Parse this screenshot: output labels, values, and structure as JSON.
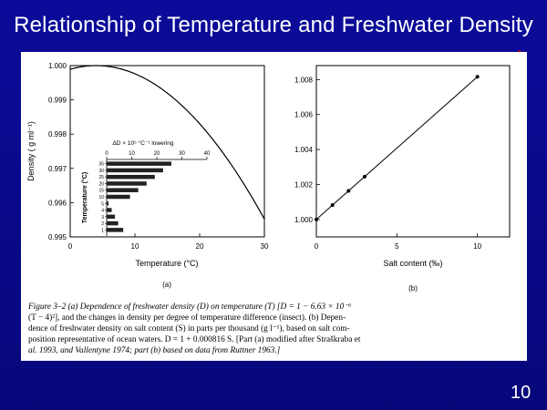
{
  "slide": {
    "title": "Relationship of Temperature and Freshwater Density",
    "page_number": "10",
    "star": "*",
    "colors": {
      "background": "#0a0a8c",
      "star": "#e00000",
      "panel": "#ffffff"
    }
  },
  "caption": {
    "lines": [
      "Figure 3–2   (a) Dependence of freshwater density (D) on temperature (T) [D = 1 − 6.63 × 10⁻⁶",
      "(T − 4)²], and the changes in density per degree of temperature difference (insect). (b) Depen-",
      "dence of freshwater density on salt content (S) in parts per thousand (g l⁻¹), based on salt com-",
      "position representative of ocean waters. D = 1 + 0.000816 S. [Part (a) modified after Straškraba et",
      "al. 1993, and Vallentyne 1974; part (b) based on data from Ruttner 1963.]"
    ]
  },
  "chart_data": [
    {
      "type": "line",
      "panel_label": "(a)",
      "xlabel": "Temperature (°C)",
      "ylabel": "Density ( g ml⁻¹)",
      "xlim": [
        0,
        30
      ],
      "ylim": [
        0.995,
        1.0
      ],
      "x_ticks": [
        0,
        10,
        20,
        30
      ],
      "x_tick_labels": [
        "0",
        "10",
        "20",
        "30"
      ],
      "y_ticks": [
        0.995,
        0.996,
        0.997,
        0.998,
        0.999,
        1.0
      ],
      "y_tick_labels": [
        "0.995",
        "0.996",
        "0.997",
        "0.998",
        "0.999",
        "1.000"
      ],
      "curve_formula_coeff": 6.63e-06,
      "curve_formula_center": 4,
      "x": [
        0,
        2,
        4,
        6,
        8,
        10,
        12,
        14,
        16,
        18,
        20,
        22,
        24,
        26,
        28,
        30
      ],
      "y": [
        0.99989,
        0.99997,
        1.0,
        0.99997,
        0.99989,
        0.99976,
        0.99958,
        0.99934,
        0.99905,
        0.99871,
        0.9983,
        0.99785,
        0.99735,
        0.99679,
        0.99618,
        0.99552
      ],
      "inset": {
        "type": "bar",
        "orientation": "horizontal",
        "xlabel": "ΔD × 10⁵ °C⁻¹ lowering",
        "ylabel": "Temperature (°C)",
        "xlim": [
          0,
          40
        ],
        "x_ticks": [
          0,
          10,
          20,
          30,
          40
        ],
        "x_tick_labels": [
          "0",
          "10",
          "20",
          "30",
          "40"
        ],
        "categories": [
          "1",
          "2",
          "3",
          "4",
          "5",
          "10",
          "15",
          "20",
          "25",
          "30",
          "35"
        ],
        "values": [
          6.6,
          4.6,
          3.3,
          2.0,
          0.7,
          9.3,
          12.6,
          15.9,
          19.2,
          22.5,
          25.8
        ]
      }
    },
    {
      "type": "line",
      "panel_label": "(b)",
      "xlabel": "Salt content (‰)",
      "ylabel": "",
      "xlim": [
        0,
        12
      ],
      "ylim": [
        0.999,
        1.0088
      ],
      "x_ticks": [
        0,
        5,
        10
      ],
      "x_tick_labels": [
        "0",
        "5",
        "10"
      ],
      "y_ticks": [
        1.0,
        1.002,
        1.004,
        1.006,
        1.008
      ],
      "y_tick_labels": [
        "1.000",
        "1.002",
        "1.004",
        "1.006",
        "1.008"
      ],
      "x": [
        0,
        1,
        2,
        3,
        10
      ],
      "y": [
        1.0,
        1.00082,
        1.00163,
        1.00245,
        1.00816
      ]
    }
  ]
}
